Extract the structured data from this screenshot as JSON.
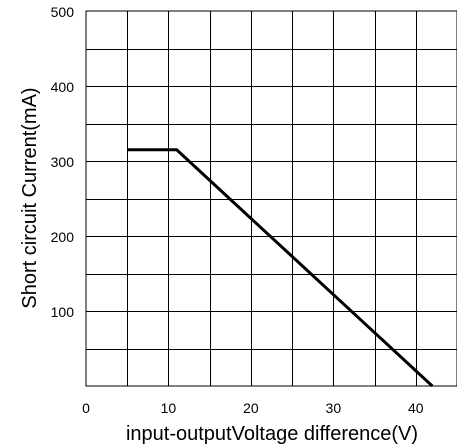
{
  "chart_data": {
    "type": "line",
    "title": "",
    "xlabel": "input-outputVoltage difference(V)",
    "ylabel": "Short circuit Current(mA)",
    "xlim": [
      0,
      45
    ],
    "ylim": [
      0,
      500
    ],
    "x_ticks": [
      0,
      10,
      20,
      30,
      40
    ],
    "y_ticks": [
      100,
      200,
      300,
      400,
      500
    ],
    "x_tick_labels": [
      "0",
      "10",
      "20",
      "30",
      "40"
    ],
    "y_tick_labels": [
      "100",
      "200",
      "300",
      "400",
      "500"
    ],
    "grid": true,
    "grid_x_step": 5,
    "grid_y_step": 50,
    "series": [
      {
        "x": [
          5,
          11,
          42
        ],
        "y": [
          315,
          315,
          0
        ],
        "color": "#000000"
      }
    ]
  }
}
